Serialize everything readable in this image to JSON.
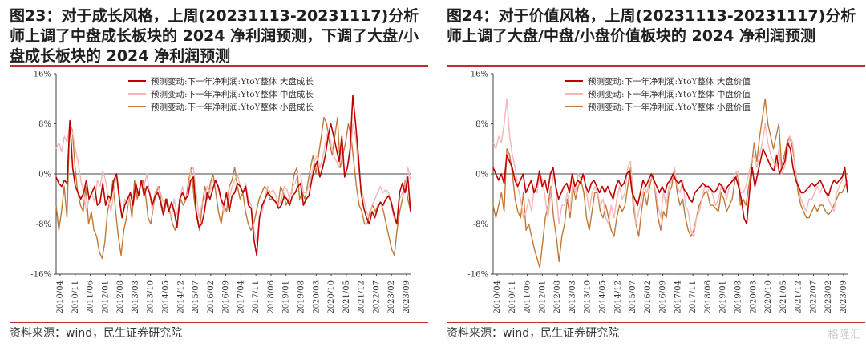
{
  "watermark": "格隆汇",
  "colors": {
    "large": "#c00000",
    "mid": "#f4b6b6",
    "small": "#c07838",
    "rule": "#b8312f"
  },
  "panels": [
    {
      "title": "图23：对于成长风格，上周(20231113-20231117)分析师上调了中盘成长板块的 2024 净利润预测，下调了大盘/小盘成长板块的 2024 净利润预测",
      "source": "资料来源：wind，民生证券研究院",
      "chart_data": {
        "type": "line",
        "ylim": [
          -16,
          16
        ],
        "y_ticks": [
          "16%",
          "8%",
          "0%",
          "-8%",
          "-16%"
        ],
        "x_ticks": [
          "2010/04",
          "2010/11",
          "2011/06",
          "2012/01",
          "2012/08",
          "2013/03",
          "2013/10",
          "2014/05",
          "2014/12",
          "2015/07",
          "2016/02",
          "2016/09",
          "2017/04",
          "2017/11",
          "2018/06",
          "2019/01",
          "2019/08",
          "2020/03",
          "2020/10",
          "2021/05",
          "2021/12",
          "2022/07",
          "2023/02",
          "2023/09"
        ],
        "series": [
          {
            "name": "预测变动:下一年净利润:YtoY整体 大盘成长",
            "color_key": "large",
            "values": [
              -0.5,
              -1.5,
              -2,
              -1,
              -1.5,
              8.5,
              1,
              -2,
              -3,
              -4,
              -3,
              -1,
              -4,
              -3,
              -2,
              -5,
              -4.5,
              -1.5,
              -5,
              -3.5,
              -4,
              -1,
              0,
              -4,
              -7,
              -5,
              -4,
              -3,
              -5,
              -1.5,
              -3.5,
              -1,
              -3.5,
              -2,
              -3,
              -5,
              -3.5,
              -3,
              -4.5,
              -6.5,
              -4,
              -6,
              -4.5,
              -6,
              -8.5,
              -4,
              -3,
              -4,
              -3.5,
              -1,
              -0.5,
              -6,
              -8.5,
              -8,
              -6,
              -3,
              -4,
              -2.5,
              -1,
              -2,
              -4,
              -5,
              -3,
              -6,
              -3.5,
              -3,
              -1.5,
              -2,
              -3,
              -2,
              -5,
              -5.5,
              -10.5,
              -13,
              -7,
              -5,
              -4,
              -3,
              -3.5,
              -4,
              -4.5,
              -5.5,
              -5,
              -3.5,
              -4,
              -5,
              -3.5,
              -3,
              -2,
              -1.5,
              -5,
              -4,
              -3.5,
              -1,
              1,
              2,
              -0.5,
              1,
              3,
              6,
              8,
              6,
              4,
              2,
              6,
              -0.5,
              1,
              4,
              12.5,
              8,
              3,
              -3,
              -5.5,
              -7,
              -8,
              -6,
              -7,
              -5.5,
              -4.5,
              -5,
              -4,
              -3.5,
              -4.5,
              -6.5,
              -8,
              -3,
              -1.5,
              -3,
              -0.5,
              -6
            ]
          },
          {
            "name": "预测变动:下一年净利润:YtoY整体 中盘成长",
            "color_key": "mid",
            "values": [
              4,
              5,
              3.5,
              6,
              5,
              8,
              6.5,
              4,
              2,
              -1,
              -3,
              -6,
              -4,
              -3,
              -4.5,
              -1,
              -2,
              0.5,
              -1,
              -4,
              -6,
              -3,
              0,
              -3,
              -7,
              -4,
              -5,
              -3,
              -5,
              -2,
              -3.5,
              -1,
              -2,
              0,
              -3,
              -6,
              -3,
              -2,
              -3,
              -4.5,
              -4,
              -6,
              -7,
              -4,
              -6.5,
              -4,
              -2,
              -4,
              -3,
              0.5,
              1,
              -3,
              -7,
              -5,
              -4,
              -2,
              -3,
              -1,
              -1,
              -2.5,
              -4,
              -6,
              -3,
              -4,
              -2,
              -1,
              0,
              -2,
              -3,
              -1.5,
              -4,
              -5,
              -9,
              -11,
              -7,
              -6,
              -4,
              -2,
              -3,
              -2.5,
              -3.5,
              -5,
              -4,
              -2,
              -2.5,
              -4,
              -2,
              -1.5,
              0,
              0,
              -3,
              -3,
              -2,
              0,
              2,
              3,
              1,
              2.5,
              5,
              7,
              5,
              3,
              2,
              1,
              4,
              0,
              1,
              3,
              8,
              6,
              1,
              -2,
              -4,
              -6,
              -7,
              -5,
              -4,
              -3,
              -2,
              -3,
              -2.5,
              -3,
              -5,
              -7,
              -8,
              -4,
              -3,
              -2,
              1,
              -1
            ]
          },
          {
            "name": "预测变动:下一年净利润:YtoY整体 小盘成长",
            "color_key": "small",
            "values": [
              -5,
              -9,
              -6,
              -2,
              -7,
              8,
              7,
              1,
              -3,
              -5,
              -6,
              -2,
              -8,
              -6,
              -9,
              -10,
              -12.5,
              -13.5,
              -11,
              -6,
              -4,
              -1,
              -6,
              -10,
              -13,
              -9,
              -7,
              -3.5,
              -7,
              -1,
              -4,
              -2,
              -1,
              -3,
              -7,
              -8,
              -5,
              -3,
              -2,
              -5,
              -6,
              -4,
              -6,
              -8,
              -9,
              -7,
              -4,
              -5,
              -4,
              -1,
              1,
              -4,
              -7,
              -9,
              -5,
              -2,
              -4,
              -1.5,
              0,
              -3,
              -6,
              -8,
              -5,
              -6,
              -2,
              -1,
              1,
              -2,
              -4,
              -3,
              -6,
              -8,
              -9,
              -8,
              -6,
              -4,
              -3,
              -2,
              -2.5,
              -4,
              -4,
              -4.5,
              -5,
              -2,
              -3,
              -5,
              -4,
              -3,
              0,
              1,
              -4,
              -3,
              -4,
              -1.5,
              1,
              3,
              0,
              3,
              6,
              9,
              8,
              5,
              3,
              6,
              9,
              1,
              3,
              5,
              8,
              6,
              2,
              -2,
              -5,
              -6,
              -8,
              -8,
              -6,
              -5,
              -6,
              -5,
              -4.5,
              -6,
              -8,
              -10,
              -12,
              -13,
              -9,
              -6,
              -4,
              -1,
              -4,
              -6
            ]
          }
        ]
      }
    },
    {
      "title": "图24：对于价值风格，上周(20231113-20231117)分析师上调了大盘/中盘/小盘价值板块的 2024 净利润预测",
      "source": "资料来源：wind，民生证券研究院",
      "chart_data": {
        "type": "line",
        "ylim": [
          -16,
          16
        ],
        "y_ticks": [
          "16%",
          "8%",
          "0%",
          "-8%",
          "-16%"
        ],
        "x_ticks": [
          "2010/04",
          "2010/11",
          "2011/06",
          "2012/01",
          "2012/08",
          "2013/03",
          "2013/10",
          "2014/05",
          "2014/12",
          "2015/07",
          "2016/02",
          "2016/09",
          "2017/04",
          "2017/11",
          "2018/06",
          "2019/01",
          "2019/08",
          "2020/03",
          "2020/10",
          "2021/05",
          "2021/12",
          "2022/07",
          "2023/02",
          "2023/09"
        ],
        "series": [
          {
            "name": "预测变动:下一年净利润:YtoY整体 大盘价值",
            "color_key": "large",
            "values": [
              1,
              0,
              -1,
              0,
              -1.5,
              3,
              2,
              1,
              -1,
              -2,
              -1,
              0,
              -3,
              -2,
              -1,
              -3,
              -2,
              0.5,
              -2,
              -1,
              -3,
              0,
              1,
              -2,
              -4,
              -3,
              -2,
              -1.5,
              -3,
              0,
              -2,
              -1,
              -1.5,
              0,
              -2,
              -3,
              -1.5,
              -1,
              -2,
              -3,
              -2,
              -3,
              -2,
              -3,
              -4,
              -2,
              -1,
              -2,
              -1.5,
              0,
              0.5,
              -3,
              -4,
              -5,
              -3,
              -1,
              -2,
              -1,
              0,
              -1,
              -2,
              -3,
              -2,
              -3,
              -1.5,
              -1,
              0,
              -1,
              -1.5,
              -1,
              -2.5,
              -3,
              -4,
              -4.5,
              -3,
              -2.5,
              -2,
              -1.5,
              -2,
              -2,
              -2.5,
              -3,
              -2.5,
              -1.5,
              -2,
              -3,
              -2,
              -1.5,
              -1,
              -0.5,
              -2,
              -4,
              -7,
              -8,
              -3,
              1,
              -2,
              0,
              2,
              4,
              3,
              2,
              1,
              0.5,
              3,
              0,
              1,
              2,
              5,
              4,
              1,
              -1,
              -2,
              -3,
              -3,
              -2.5,
              -2,
              -1.5,
              -2,
              -1.5,
              -1,
              -2,
              -3,
              -3.5,
              -2,
              -1,
              -1.5,
              -1,
              -0.5,
              1,
              -3
            ]
          },
          {
            "name": "预测变动:下一年净利润:YtoY整体 中盘价值",
            "color_key": "mid",
            "values": [
              5,
              4,
              6,
              5,
              8,
              12,
              6,
              3,
              1,
              -2,
              -4,
              -7,
              -6,
              -4,
              -6,
              -2,
              -3,
              0,
              -1,
              -4,
              -7,
              -3,
              0,
              -3,
              -8,
              -5,
              -5,
              -3,
              -6,
              -1,
              -3,
              0,
              -1,
              0,
              -3,
              -6,
              -3,
              -2,
              -3,
              -5,
              -4,
              -7,
              -8,
              -5,
              -7,
              -4,
              -2,
              -4,
              -3,
              1,
              2,
              -3,
              -8,
              -6,
              -4,
              -2,
              -3,
              -1,
              -0.5,
              -2.5,
              -5,
              -7,
              -3,
              -5,
              -2,
              -1,
              1,
              -2,
              -3,
              -1,
              -5,
              -6,
              -9,
              -10,
              -7,
              -6,
              -4,
              -2,
              -3,
              -2,
              -3.5,
              -5,
              -4,
              -2,
              -2,
              -4,
              -2,
              -1,
              0,
              0.5,
              -3,
              -3,
              -2,
              0,
              2,
              3,
              1,
              3,
              5,
              8,
              5,
              3,
              2,
              1,
              4,
              0,
              1,
              3,
              6,
              5,
              1,
              -2,
              -4,
              -5,
              -6,
              -4,
              -4,
              -3,
              -2,
              -3,
              -2,
              -3,
              -4,
              -5,
              -6,
              -3,
              -2,
              -1,
              0.5,
              -2
            ]
          },
          {
            "name": "预测变动:下一年净利润:YtoY整体 小盘价值",
            "color_key": "small",
            "values": [
              -5,
              -7,
              -5,
              -3,
              -6,
              4,
              3,
              0,
              -4,
              -6,
              -7,
              -3,
              -9,
              -8,
              -10,
              -12,
              -13.5,
              -15,
              -11,
              -7,
              -5,
              -2,
              -7,
              -10,
              -14,
              -10,
              -8,
              -4,
              -7,
              -2,
              -4,
              -2,
              -1,
              -3,
              -7,
              -9,
              -6,
              -3,
              -3,
              -6,
              -7,
              -5,
              -7,
              -9,
              -10,
              -7,
              -5,
              -6,
              -5,
              -2,
              1,
              -5,
              -8,
              -10,
              -6,
              -3,
              -5,
              -2,
              0,
              -3,
              -7,
              -9,
              -6,
              -7,
              -3,
              -2,
              1,
              -3,
              -5,
              -4,
              -7,
              -9,
              -10,
              -9,
              -7,
              -5,
              -4,
              -3,
              -3,
              -5,
              -5,
              -5.5,
              -6,
              -3,
              -4,
              -6,
              -5,
              -4,
              -1,
              0,
              -5,
              -4,
              -5,
              -2,
              1,
              5,
              2,
              6,
              9,
              12,
              8,
              6,
              4,
              6,
              8,
              1,
              3,
              5,
              6,
              4,
              1,
              -3,
              -5,
              -6,
              -7,
              -7,
              -6,
              -5,
              -6,
              -5,
              -5,
              -6,
              -6.5,
              -6,
              -5,
              -4,
              -3,
              -3,
              -2,
              -1
            ]
          }
        ]
      }
    }
  ]
}
